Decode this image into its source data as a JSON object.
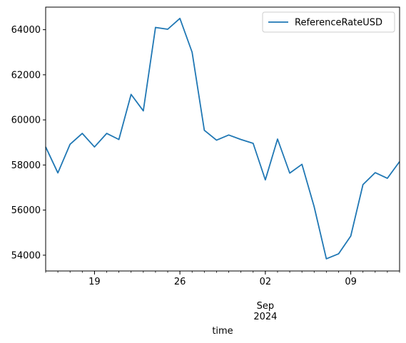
{
  "chart_data": {
    "type": "line",
    "xlabel": "time",
    "ylabel": "",
    "title": "",
    "x": [
      "2024-08-15",
      "2024-08-16",
      "2024-08-17",
      "2024-08-18",
      "2024-08-19",
      "2024-08-20",
      "2024-08-21",
      "2024-08-22",
      "2024-08-23",
      "2024-08-24",
      "2024-08-25",
      "2024-08-26",
      "2024-08-27",
      "2024-08-28",
      "2024-08-29",
      "2024-08-30",
      "2024-08-31",
      "2024-09-01",
      "2024-09-02",
      "2024-09-03",
      "2024-09-04",
      "2024-09-05",
      "2024-09-06",
      "2024-09-07",
      "2024-09-08",
      "2024-09-09",
      "2024-09-10",
      "2024-09-11",
      "2024-09-12",
      "2024-09-13"
    ],
    "series": [
      {
        "name": "ReferenceRateUSD",
        "color": "#1f77b4",
        "values": [
          58800,
          57650,
          58920,
          59400,
          58800,
          59400,
          59130,
          61130,
          60400,
          64100,
          64020,
          64500,
          63000,
          59540,
          59100,
          59330,
          59130,
          58960,
          57340,
          59150,
          57640,
          58030,
          56150,
          53840,
          54060,
          54850,
          57130,
          57660,
          57410,
          58150
        ]
      }
    ],
    "xlim": [
      "2024-08-15",
      "2024-09-13"
    ],
    "ylim": [
      53300,
      65000
    ],
    "yticks": [
      54000,
      56000,
      58000,
      60000,
      62000,
      64000
    ],
    "xticks": [
      {
        "date": "2024-08-19",
        "label": "19"
      },
      {
        "date": "2024-08-26",
        "label": "26"
      },
      {
        "date": "2024-09-02",
        "label": "02"
      },
      {
        "date": "2024-09-09",
        "label": "09"
      }
    ],
    "xtick_secondary": {
      "date": "2024-09-02",
      "line1": "Sep",
      "line2": "2024"
    },
    "legend": "top-right",
    "grid": false
  }
}
